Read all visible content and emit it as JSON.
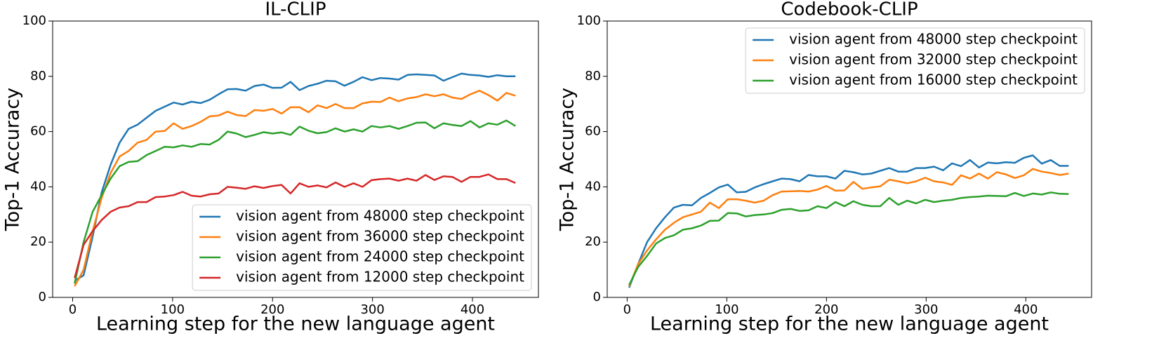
{
  "chart_data": [
    {
      "type": "line",
      "title": "IL-CLIP",
      "xlabel": "Learning step for the new language agent",
      "ylabel": "Top-1 Accuracy",
      "x": [
        2,
        11,
        20,
        29,
        38,
        47,
        56,
        65,
        74,
        83,
        92,
        101,
        110,
        119,
        128,
        137,
        146,
        155,
        164,
        173,
        182,
        191,
        200,
        209,
        218,
        227,
        236,
        245,
        254,
        263,
        272,
        281,
        290,
        299,
        308,
        317,
        326,
        335,
        344,
        353,
        362,
        371,
        380,
        389,
        398,
        407,
        416,
        425,
        434,
        443
      ],
      "xlim": [
        -20,
        466
      ],
      "ylim": [
        0,
        100
      ],
      "xticks": [
        0,
        100,
        200,
        300,
        400
      ],
      "yticks": [
        0,
        20,
        40,
        60,
        80,
        100
      ],
      "legend": "lower right",
      "series": [
        {
          "name": "vision agent from 48000 step checkpoint",
          "color": "#1f77b4",
          "values": [
            6,
            8,
            22,
            38,
            48,
            56,
            61,
            62.5,
            65,
            67.5,
            69,
            70.5,
            69.8,
            70.8,
            70.3,
            71.5,
            73.5,
            75.3,
            75.4,
            74.8,
            76.5,
            77,
            75.8,
            75.9,
            78,
            75,
            76.5,
            77.3,
            78.4,
            78.2,
            76.6,
            78,
            79.7,
            78.6,
            79.4,
            79.2,
            78.8,
            80.5,
            80.7,
            80.5,
            80.3,
            78.4,
            79.7,
            81,
            80.5,
            80.3,
            79.8,
            80.4,
            80,
            80
          ]
        },
        {
          "name": "vision agent from 36000 step checkpoint",
          "color": "#ff7f0e",
          "values": [
            4,
            10,
            24,
            36,
            45,
            51,
            53,
            56,
            57,
            60,
            60.2,
            63,
            61,
            62,
            63.5,
            65.5,
            65.8,
            67.2,
            66,
            65.6,
            67.8,
            67.5,
            68.2,
            66.5,
            68.8,
            68.8,
            67,
            69.5,
            68.5,
            70,
            68.5,
            68.5,
            70.2,
            70.8,
            70.7,
            72.3,
            71,
            72,
            72.5,
            73.5,
            72.8,
            73.5,
            72.3,
            71.8,
            73.5,
            74.8,
            73.2,
            71.2,
            74,
            73
          ]
        },
        {
          "name": "vision agent from 24000 step checkpoint",
          "color": "#2ca02c",
          "values": [
            5,
            20,
            31,
            37,
            43,
            47.5,
            49,
            49.3,
            51.5,
            53,
            54.5,
            54.3,
            55,
            54.5,
            55.5,
            55.3,
            57,
            60,
            59.3,
            58,
            58.8,
            59.8,
            59.3,
            59.7,
            58.8,
            61.8,
            60.3,
            59.4,
            59.8,
            61.2,
            60,
            60.8,
            60,
            62,
            61.5,
            62,
            61,
            62,
            63.2,
            63.3,
            61.2,
            63,
            62.4,
            62,
            63.8,
            61.5,
            63,
            62.5,
            64,
            62
          ]
        },
        {
          "name": "vision agent from 12000 step checkpoint",
          "color": "#d62728",
          "values": [
            7,
            19,
            24,
            28,
            31,
            32.5,
            33,
            34.5,
            34.5,
            36.3,
            36.5,
            37,
            38.2,
            36.8,
            36.5,
            37.3,
            37.6,
            40,
            39.7,
            39.3,
            40.2,
            39.6,
            40.3,
            40.7,
            37.6,
            41.3,
            40,
            40.5,
            39.8,
            41.6,
            40,
            41.3,
            40,
            42.4,
            42.8,
            43,
            42.2,
            43,
            42.2,
            44.3,
            42.5,
            43.8,
            43.6,
            41.8,
            43.6,
            43.6,
            44.5,
            42.8,
            42.8,
            41.4
          ]
        }
      ]
    },
    {
      "type": "line",
      "title": "Codebook-CLIP",
      "xlabel": "Learning step for the new language agent",
      "ylabel": "Top-1 Accuracy",
      "x": [
        2,
        11,
        20,
        29,
        38,
        47,
        56,
        65,
        74,
        83,
        92,
        101,
        110,
        119,
        128,
        137,
        146,
        155,
        164,
        173,
        182,
        191,
        200,
        209,
        218,
        227,
        236,
        245,
        254,
        263,
        272,
        281,
        290,
        299,
        308,
        317,
        326,
        335,
        344,
        353,
        362,
        371,
        380,
        389,
        398,
        407,
        416,
        425,
        434,
        443
      ],
      "xlim": [
        -20,
        466
      ],
      "ylim": [
        0,
        100
      ],
      "xticks": [
        0,
        100,
        200,
        300,
        400
      ],
      "yticks": [
        0,
        20,
        40,
        60,
        80,
        100
      ],
      "legend": "upper right",
      "series": [
        {
          "name": "vision agent from 48000 step checkpoint",
          "color": "#1f77b4",
          "values": [
            3.5,
            12,
            20,
            25,
            29,
            32.5,
            33.5,
            33.3,
            36,
            37.8,
            39.8,
            40.8,
            38,
            38.2,
            39.8,
            41,
            42,
            43,
            42.8,
            42,
            44.3,
            43.8,
            43.8,
            43,
            45.8,
            45.3,
            44.5,
            44.8,
            45.8,
            46.8,
            45.5,
            45.5,
            46.8,
            46.8,
            47.3,
            46,
            48.5,
            47.5,
            49.7,
            47,
            48.8,
            48.5,
            48.9,
            48.7,
            50.5,
            51.4,
            48.4,
            49.7,
            47.6,
            47.6
          ]
        },
        {
          "name": "vision agent from 32000 step checkpoint",
          "color": "#ff7f0e",
          "values": [
            4,
            12,
            17,
            21,
            24.5,
            27,
            29,
            30,
            31,
            34.3,
            32.3,
            35.5,
            35.5,
            35,
            34.3,
            35,
            37,
            38.3,
            38.4,
            38.5,
            38.3,
            39,
            40.3,
            38.6,
            38.7,
            41.8,
            39.3,
            39.8,
            40.2,
            42.6,
            42,
            41.3,
            42,
            43.3,
            42,
            41.6,
            40.7,
            44.2,
            43,
            44.8,
            43,
            45.3,
            44.5,
            43.2,
            44.2,
            46.5,
            45.5,
            45,
            44.3,
            44.8
          ]
        },
        {
          "name": "vision agent from 16000 step checkpoint",
          "color": "#2ca02c",
          "values": [
            4.5,
            11,
            15,
            19.5,
            21.5,
            22.5,
            24.5,
            25,
            26,
            27.7,
            27.8,
            30.5,
            30.4,
            29.3,
            29.8,
            30,
            30.5,
            31.7,
            32,
            31.3,
            31.5,
            33,
            32.3,
            34.5,
            33,
            34.8,
            33.5,
            33,
            33,
            36,
            33.5,
            35,
            34,
            35.3,
            34.5,
            35,
            35.3,
            36,
            36.3,
            36.5,
            36.8,
            36.7,
            36.6,
            37.8,
            36.7,
            37.6,
            37.2,
            38,
            37.5,
            37.4
          ]
        }
      ]
    }
  ]
}
